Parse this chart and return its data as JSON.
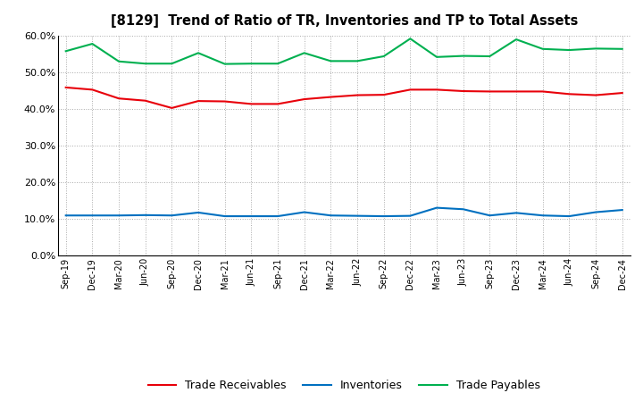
{
  "title": "[8129]  Trend of Ratio of TR, Inventories and TP to Total Assets",
  "x_labels": [
    "Sep-19",
    "Dec-19",
    "Mar-20",
    "Jun-20",
    "Sep-20",
    "Dec-20",
    "Mar-21",
    "Jun-21",
    "Sep-21",
    "Dec-21",
    "Mar-22",
    "Jun-22",
    "Sep-22",
    "Dec-22",
    "Mar-23",
    "Jun-23",
    "Sep-23",
    "Dec-23",
    "Mar-24",
    "Jun-24",
    "Sep-24",
    "Dec-24"
  ],
  "trade_receivables": [
    0.458,
    0.452,
    0.428,
    0.422,
    0.402,
    0.421,
    0.42,
    0.413,
    0.413,
    0.426,
    0.432,
    0.437,
    0.438,
    0.452,
    0.452,
    0.448,
    0.447,
    0.447,
    0.447,
    0.44,
    0.437,
    0.443
  ],
  "inventories": [
    0.109,
    0.109,
    0.109,
    0.11,
    0.109,
    0.117,
    0.107,
    0.107,
    0.107,
    0.118,
    0.109,
    0.108,
    0.107,
    0.108,
    0.13,
    0.126,
    0.109,
    0.116,
    0.109,
    0.107,
    0.118,
    0.124
  ],
  "trade_payables": [
    0.557,
    0.577,
    0.529,
    0.523,
    0.523,
    0.552,
    0.522,
    0.523,
    0.523,
    0.552,
    0.53,
    0.53,
    0.543,
    0.591,
    0.541,
    0.544,
    0.543,
    0.589,
    0.563,
    0.56,
    0.564,
    0.563
  ],
  "tr_color": "#e8000a",
  "inv_color": "#0070c0",
  "tp_color": "#00b050",
  "ylim": [
    0.0,
    0.6
  ],
  "yticks": [
    0.0,
    0.1,
    0.2,
    0.3,
    0.4,
    0.5,
    0.6
  ],
  "bg_color": "#ffffff",
  "plot_bg_color": "#ffffff",
  "grid_color": "#aaaaaa",
  "legend_labels": [
    "Trade Receivables",
    "Inventories",
    "Trade Payables"
  ]
}
